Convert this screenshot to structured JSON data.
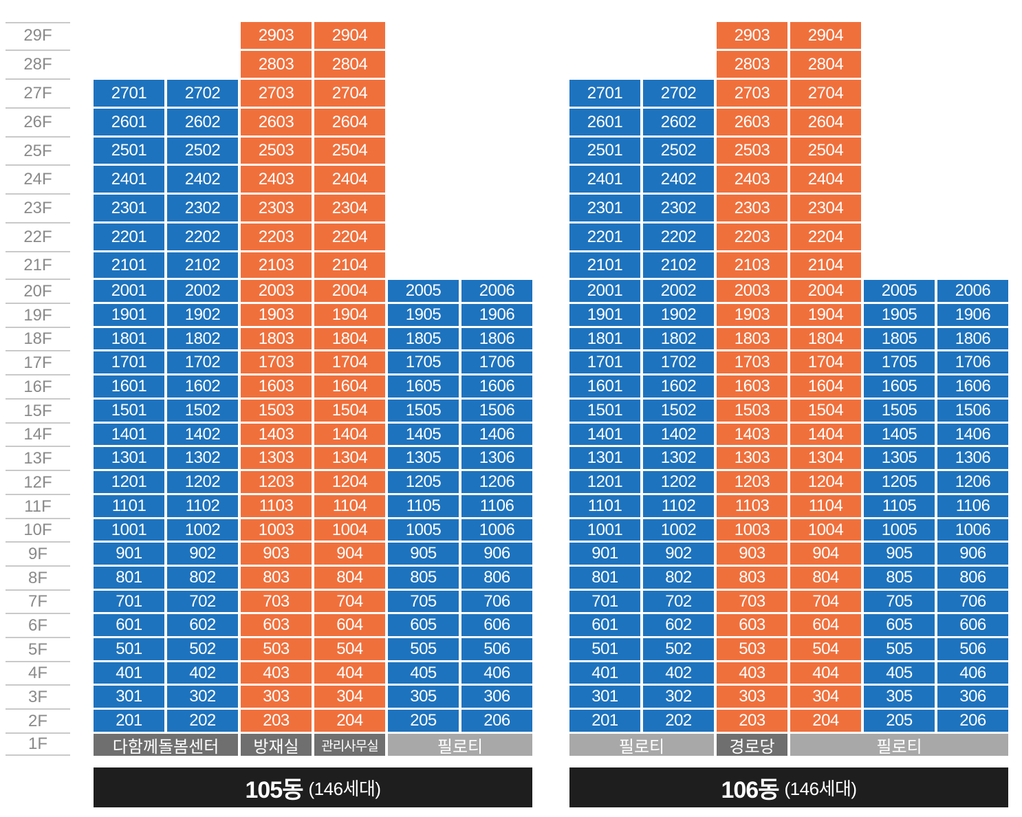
{
  "colors": {
    "blue": "#1e73be",
    "orange": "#f0703c",
    "facility_dark": "#6f6f6f",
    "facility_light": "#a8a8a8",
    "bar": "#1e1e1e"
  },
  "floors": [
    "29F",
    "28F",
    "27F",
    "26F",
    "25F",
    "24F",
    "23F",
    "22F",
    "21F",
    "20F",
    "19F",
    "18F",
    "17F",
    "16F",
    "15F",
    "14F",
    "13F",
    "12F",
    "11F",
    "10F",
    "9F",
    "8F",
    "7F",
    "6F",
    "5F",
    "4F",
    "3F",
    "2F",
    "1F"
  ],
  "buildings": [
    {
      "name": "105동",
      "count": "(146세대)",
      "columns": [
        {
          "line": "01",
          "color": "blue",
          "top_floor": 27
        },
        {
          "line": "02",
          "color": "blue",
          "top_floor": 27
        },
        {
          "line": "03",
          "color": "orange",
          "top_floor": 29
        },
        {
          "line": "04",
          "color": "orange",
          "top_floor": 29
        },
        {
          "line": "05",
          "color": "blue",
          "top_floor": 20
        },
        {
          "line": "06",
          "color": "blue",
          "top_floor": 20
        }
      ],
      "ground": [
        {
          "label": "다함께돌봄센터",
          "span": 2,
          "tone": "dark",
          "size": "normal"
        },
        {
          "label": "방재실",
          "span": 1,
          "tone": "dark",
          "size": "normal"
        },
        {
          "label": "관리사무실",
          "span": 1,
          "tone": "dark",
          "size": "small"
        },
        {
          "label": "필로티",
          "span": 2,
          "tone": "light",
          "size": "normal"
        }
      ]
    },
    {
      "name": "106동",
      "count": "(146세대)",
      "columns": [
        {
          "line": "01",
          "color": "blue",
          "top_floor": 27
        },
        {
          "line": "02",
          "color": "blue",
          "top_floor": 27
        },
        {
          "line": "03",
          "color": "orange",
          "top_floor": 29
        },
        {
          "line": "04",
          "color": "orange",
          "top_floor": 29
        },
        {
          "line": "05",
          "color": "blue",
          "top_floor": 20
        },
        {
          "line": "06",
          "color": "blue",
          "top_floor": 20
        }
      ],
      "ground": [
        {
          "label": "필로티",
          "span": 2,
          "tone": "light",
          "size": "normal"
        },
        {
          "label": "경로당",
          "span": 1,
          "tone": "dark",
          "size": "normal"
        },
        {
          "label": "필로티",
          "span": 3,
          "tone": "light",
          "size": "normal"
        }
      ]
    }
  ]
}
